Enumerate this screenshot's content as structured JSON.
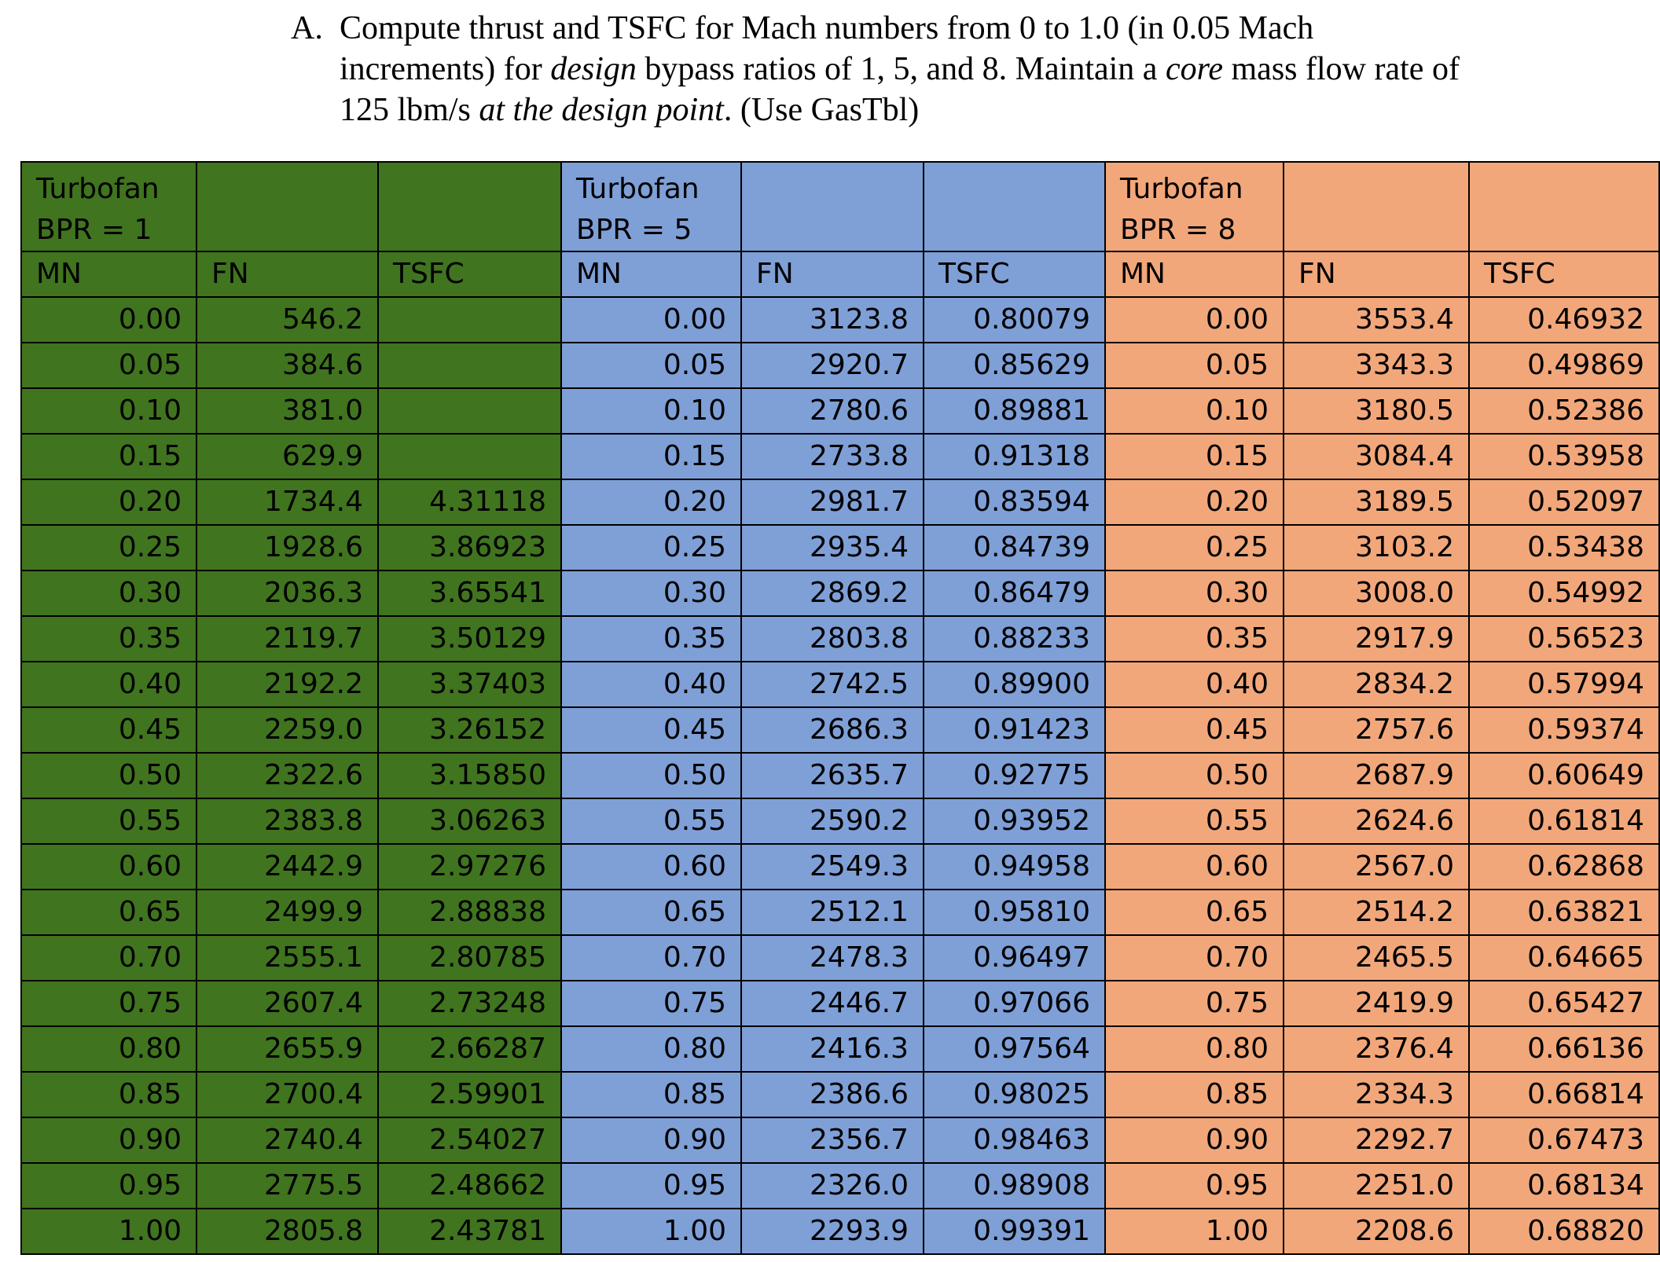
{
  "problem": {
    "label": "A.",
    "line1_a": "Compute thrust and TSFC for Mach numbers from 0 to 1.0 (in 0.05 Mach",
    "line2_a": "increments) for ",
    "line2_em": "design",
    "line2_b": " bypass ratios of 1, 5, and 8. Maintain a ",
    "line2_em2": "core",
    "line2_c": " mass flow rate of",
    "line3_a": "125 lbm/s ",
    "line3_em": "at the design point",
    "line3_b": ". (Use GasTbl)"
  },
  "table": {
    "groups": [
      {
        "title_line1": "Turbofan",
        "title_line2": "BPR = 1",
        "color": "#40741f"
      },
      {
        "title_line1": "Turbofan",
        "title_line2": "BPR = 5",
        "color": "#7f9fd7"
      },
      {
        "title_line1": "Turbofan",
        "title_line2": "BPR = 8",
        "color": "#f2a77a"
      }
    ],
    "headers": [
      "MN",
      "FN",
      "TSFC",
      "MN",
      "FN",
      "TSFC",
      "MN",
      "FN",
      "TSFC"
    ],
    "rows": [
      [
        "0.00",
        "546.2",
        "",
        "0.00",
        "3123.8",
        "0.80079",
        "0.00",
        "3553.4",
        "0.46932"
      ],
      [
        "0.05",
        "384.6",
        "",
        "0.05",
        "2920.7",
        "0.85629",
        "0.05",
        "3343.3",
        "0.49869"
      ],
      [
        "0.10",
        "381.0",
        "",
        "0.10",
        "2780.6",
        "0.89881",
        "0.10",
        "3180.5",
        "0.52386"
      ],
      [
        "0.15",
        "629.9",
        "",
        "0.15",
        "2733.8",
        "0.91318",
        "0.15",
        "3084.4",
        "0.53958"
      ],
      [
        "0.20",
        "1734.4",
        "4.31118",
        "0.20",
        "2981.7",
        "0.83594",
        "0.20",
        "3189.5",
        "0.52097"
      ],
      [
        "0.25",
        "1928.6",
        "3.86923",
        "0.25",
        "2935.4",
        "0.84739",
        "0.25",
        "3103.2",
        "0.53438"
      ],
      [
        "0.30",
        "2036.3",
        "3.65541",
        "0.30",
        "2869.2",
        "0.86479",
        "0.30",
        "3008.0",
        "0.54992"
      ],
      [
        "0.35",
        "2119.7",
        "3.50129",
        "0.35",
        "2803.8",
        "0.88233",
        "0.35",
        "2917.9",
        "0.56523"
      ],
      [
        "0.40",
        "2192.2",
        "3.37403",
        "0.40",
        "2742.5",
        "0.89900",
        "0.40",
        "2834.2",
        "0.57994"
      ],
      [
        "0.45",
        "2259.0",
        "3.26152",
        "0.45",
        "2686.3",
        "0.91423",
        "0.45",
        "2757.6",
        "0.59374"
      ],
      [
        "0.50",
        "2322.6",
        "3.15850",
        "0.50",
        "2635.7",
        "0.92775",
        "0.50",
        "2687.9",
        "0.60649"
      ],
      [
        "0.55",
        "2383.8",
        "3.06263",
        "0.55",
        "2590.2",
        "0.93952",
        "0.55",
        "2624.6",
        "0.61814"
      ],
      [
        "0.60",
        "2442.9",
        "2.97276",
        "0.60",
        "2549.3",
        "0.94958",
        "0.60",
        "2567.0",
        "0.62868"
      ],
      [
        "0.65",
        "2499.9",
        "2.88838",
        "0.65",
        "2512.1",
        "0.95810",
        "0.65",
        "2514.2",
        "0.63821"
      ],
      [
        "0.70",
        "2555.1",
        "2.80785",
        "0.70",
        "2478.3",
        "0.96497",
        "0.70",
        "2465.5",
        "0.64665"
      ],
      [
        "0.75",
        "2607.4",
        "2.73248",
        "0.75",
        "2446.7",
        "0.97066",
        "0.75",
        "2419.9",
        "0.65427"
      ],
      [
        "0.80",
        "2655.9",
        "2.66287",
        "0.80",
        "2416.3",
        "0.97564",
        "0.80",
        "2376.4",
        "0.66136"
      ],
      [
        "0.85",
        "2700.4",
        "2.59901",
        "0.85",
        "2386.6",
        "0.98025",
        "0.85",
        "2334.3",
        "0.66814"
      ],
      [
        "0.90",
        "2740.4",
        "2.54027",
        "0.90",
        "2356.7",
        "0.98463",
        "0.90",
        "2292.7",
        "0.67473"
      ],
      [
        "0.95",
        "2775.5",
        "2.48662",
        "0.95",
        "2326.0",
        "0.98908",
        "0.95",
        "2251.0",
        "0.68134"
      ],
      [
        "1.00",
        "2805.8",
        "2.43781",
        "1.00",
        "2293.9",
        "0.99391",
        "1.00",
        "2208.6",
        "0.68820"
      ]
    ]
  }
}
